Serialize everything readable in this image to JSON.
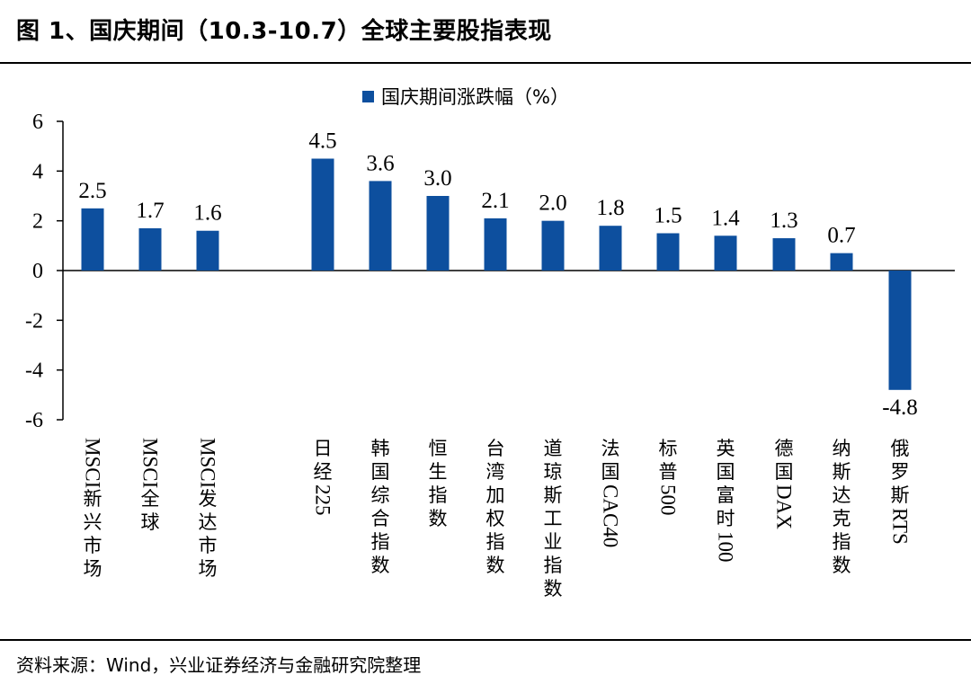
{
  "figure": {
    "title": "图 1、国庆期间（10.3-10.7）全球主要股指表现",
    "source": "资料来源：Wind，兴业证券经济与金融研究院整理"
  },
  "colors": {
    "bar": "#0D4F9E",
    "axis": "#000000"
  },
  "chart_data": {
    "type": "bar",
    "title": "",
    "xlabel": "",
    "ylabel": "",
    "ylim": [
      -6,
      6
    ],
    "yticks": [
      "6",
      "4",
      "2",
      "0",
      "-2",
      "-4",
      "-6"
    ],
    "grid": false,
    "legend": {
      "position": "top-center"
    },
    "categories": [
      "MSCI新兴市场",
      "MSCI全球",
      "MSCI发达市场",
      "日经225",
      "韩国综合指数",
      "恒生指数",
      "台湾加权指数",
      "道琼斯工业指数",
      "法国CAC40",
      "标普500",
      "英国富时100",
      "德国DAX",
      "纳斯达克指数",
      "俄罗斯RTS"
    ],
    "series": [
      {
        "name": "国庆期间涨跌幅（%）",
        "values": [
          2.5,
          1.7,
          1.6,
          4.5,
          3.6,
          3.0,
          2.1,
          2.0,
          1.8,
          1.5,
          1.4,
          1.3,
          0.7,
          -4.8
        ],
        "labels": [
          "2.5",
          "1.7",
          "1.6",
          "4.5",
          "3.6",
          "3.0",
          "2.1",
          "2.0",
          "1.8",
          "1.5",
          "1.4",
          "1.3",
          "0.7",
          "-4.8"
        ]
      }
    ]
  }
}
